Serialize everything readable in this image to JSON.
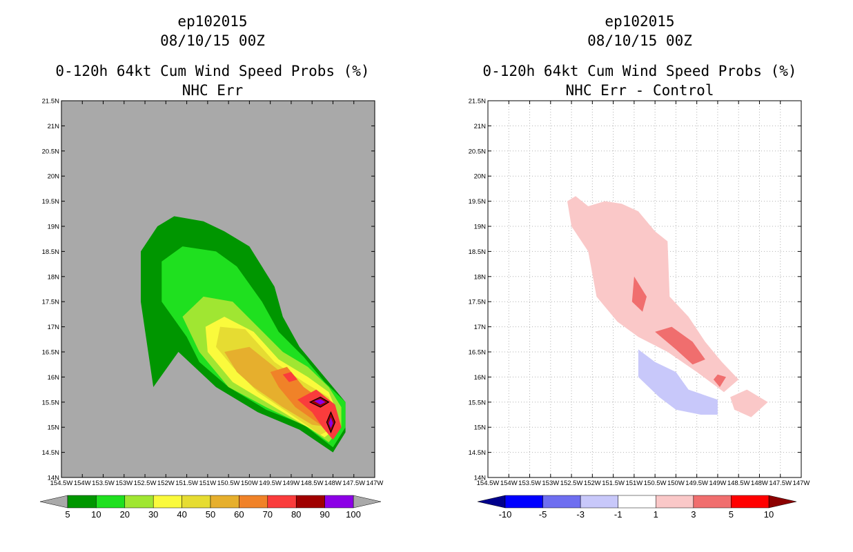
{
  "chart_data": [
    {
      "type": "filled-contour-map",
      "title_lines": [
        "ep102015",
        "08/10/15 00Z",
        "0-120h 64kt Cum Wind Speed Probs (%)",
        "NHC Err"
      ],
      "xlabel": "",
      "ylabel": "",
      "xlim": [
        -154.5,
        -147
      ],
      "ylim": [
        14,
        21.5
      ],
      "x_tick_labels": [
        "154.5W",
        "154W",
        "153.5W",
        "153W",
        "152.5W",
        "152W",
        "151.5W",
        "151W",
        "150.5W",
        "150W",
        "149.5W",
        "149W",
        "148.5W",
        "148W",
        "147.5W",
        "147W"
      ],
      "y_tick_labels": [
        "14N",
        "14.5N",
        "15N",
        "15.5N",
        "16N",
        "16.5N",
        "17N",
        "17.5N",
        "18N",
        "18.5N",
        "19N",
        "19.5N",
        "20N",
        "20.5N",
        "21N",
        "21.5N"
      ],
      "background": "#a9a9a9",
      "colorbar": {
        "labels": [
          "5",
          "10",
          "20",
          "30",
          "40",
          "50",
          "60",
          "70",
          "80",
          "90",
          "100"
        ],
        "colors": [
          "#009600",
          "#1fe01f",
          "#a0e632",
          "#fafa3c",
          "#e6dc32",
          "#e6af2d",
          "#f08228",
          "#fa3c3c",
          "#a00000",
          "#8c00e6"
        ],
        "under_color": "#a9a9a9",
        "over_color": "#a9a9a9"
      },
      "series": [
        {
          "name": ">5",
          "color": "#009600",
          "polygon": [
            [
              -152.3,
              15.8
            ],
            [
              -152.6,
              17.5
            ],
            [
              -152.6,
              18.5
            ],
            [
              -152.2,
              19
            ],
            [
              -151.8,
              19.2
            ],
            [
              -151.1,
              19.1
            ],
            [
              -150.6,
              18.9
            ],
            [
              -150,
              18.6
            ],
            [
              -149.4,
              17.8
            ],
            [
              -149.2,
              17.2
            ],
            [
              -148.8,
              16.6
            ],
            [
              -148.3,
              16.1
            ],
            [
              -147.7,
              15.5
            ],
            [
              -147.7,
              14.9
            ],
            [
              -148,
              14.5
            ],
            [
              -148.8,
              14.95
            ],
            [
              -149.8,
              15.3
            ],
            [
              -150.8,
              15.8
            ],
            [
              -151.7,
              16.5
            ]
          ]
        },
        {
          "name": ">10",
          "color": "#1fe01f",
          "polygon": [
            [
              -151.5,
              16.8
            ],
            [
              -152.1,
              17.5
            ],
            [
              -152.1,
              18.3
            ],
            [
              -151.6,
              18.6
            ],
            [
              -150.8,
              18.5
            ],
            [
              -150.3,
              18.2
            ],
            [
              -149.7,
              17.5
            ],
            [
              -149.3,
              16.9
            ],
            [
              -148.7,
              16.4
            ],
            [
              -148.2,
              15.9
            ],
            [
              -147.7,
              15.5
            ],
            [
              -147.7,
              15
            ],
            [
              -148,
              14.6
            ],
            [
              -148.7,
              15.05
            ],
            [
              -149.6,
              15.35
            ],
            [
              -150.5,
              15.8
            ],
            [
              -151.2,
              16.3
            ]
          ]
        },
        {
          "name": ">20",
          "color": "#a0e632",
          "polygon": [
            [
              -151.2,
              16.5
            ],
            [
              -151.6,
              17.2
            ],
            [
              -151.1,
              17.6
            ],
            [
              -150.4,
              17.5
            ],
            [
              -149.8,
              17
            ],
            [
              -149.2,
              16.5
            ],
            [
              -148.6,
              16.2
            ],
            [
              -148.1,
              15.8
            ],
            [
              -147.8,
              15.4
            ],
            [
              -147.8,
              15
            ],
            [
              -148.1,
              14.7
            ],
            [
              -148.6,
              15
            ],
            [
              -149.6,
              15.4
            ],
            [
              -150.5,
              15.8
            ]
          ]
        },
        {
          "name": ">30",
          "color": "#fafa3c",
          "polygon": [
            [
              -151,
              16.5
            ],
            [
              -151.05,
              17
            ],
            [
              -150.6,
              17.2
            ],
            [
              -149.9,
              16.9
            ],
            [
              -149.3,
              16.35
            ],
            [
              -148.6,
              16
            ],
            [
              -148.1,
              15.7
            ],
            [
              -147.9,
              15.3
            ],
            [
              -147.9,
              15
            ],
            [
              -148.2,
              14.8
            ],
            [
              -148.8,
              15.1
            ],
            [
              -149.7,
              15.55
            ],
            [
              -150.4,
              15.9
            ]
          ]
        },
        {
          "name": ">40",
          "color": "#e6dc32",
          "polygon": [
            [
              -150.8,
              16.6
            ],
            [
              -150.7,
              17
            ],
            [
              -150.1,
              16.95
            ],
            [
              -149.4,
              16.3
            ],
            [
              -148.7,
              15.9
            ],
            [
              -148.1,
              15.6
            ],
            [
              -147.9,
              15.25
            ],
            [
              -147.95,
              15.0
            ],
            [
              -148.3,
              14.85
            ],
            [
              -149,
              15.25
            ],
            [
              -149.8,
              15.7
            ],
            [
              -150.4,
              16.2
            ]
          ]
        },
        {
          "name": ">50",
          "color": "#e6af2d",
          "polygon": [
            [
              -150.6,
              16.5
            ],
            [
              -150,
              16.6
            ],
            [
              -149.4,
              16.2
            ],
            [
              -148.8,
              15.8
            ],
            [
              -148.3,
              15.5
            ],
            [
              -148.0,
              15.2
            ],
            [
              -148.05,
              15.0
            ],
            [
              -148.5,
              15.05
            ],
            [
              -149.2,
              15.4
            ],
            [
              -149.9,
              15.8
            ],
            [
              -150.3,
              16.1
            ]
          ]
        },
        {
          "name": ">60",
          "color": "#f08228",
          "polygon": [
            [
              -149.5,
              16.1
            ],
            [
              -149.1,
              16.2
            ],
            [
              -148.7,
              15.8
            ],
            [
              -148.2,
              15.5
            ],
            [
              -148.05,
              15.15
            ],
            [
              -148.3,
              15.05
            ],
            [
              -148.9,
              15.4
            ],
            [
              -149.3,
              15.8
            ]
          ]
        },
        {
          "name": ">70",
          "color": "#fa3c3c",
          "polygon": [
            [
              -148.85,
              15.55
            ],
            [
              -148.4,
              15.75
            ],
            [
              -147.95,
              15.45
            ],
            [
              -147.8,
              15.0
            ],
            [
              -148.0,
              14.75
            ],
            [
              -148.25,
              15.0
            ],
            [
              -148.5,
              15.3
            ]
          ]
        },
        {
          "name": ">70b",
          "color": "#fa3c3c",
          "polygon": [
            [
              -149.2,
              16.05
            ],
            [
              -149.0,
              16.1
            ],
            [
              -148.85,
              15.95
            ],
            [
              -149.05,
              15.9
            ]
          ]
        },
        {
          "name": ">80",
          "color": "#a00000",
          "polygon": [
            [
              -148.55,
              15.5
            ],
            [
              -148.3,
              15.6
            ],
            [
              -148.1,
              15.5
            ],
            [
              -148.3,
              15.4
            ]
          ]
        },
        {
          "name": ">80b",
          "color": "#a00000",
          "polygon": [
            [
              -148.05,
              15.3
            ],
            [
              -147.95,
              15.1
            ],
            [
              -148.05,
              14.9
            ],
            [
              -148.15,
              15.1
            ]
          ]
        },
        {
          "name": ">90",
          "color": "#8c00e6",
          "polygon": [
            [
              -148.45,
              15.52
            ],
            [
              -148.3,
              15.56
            ],
            [
              -148.18,
              15.5
            ],
            [
              -148.3,
              15.45
            ]
          ]
        },
        {
          "name": ">90b",
          "color": "#8c00e6",
          "polygon": [
            [
              -148.05,
              15.2
            ],
            [
              -148.0,
              15.08
            ],
            [
              -148.05,
              14.98
            ],
            [
              -148.1,
              15.08
            ]
          ]
        }
      ]
    },
    {
      "type": "filled-contour-map",
      "title_lines": [
        "ep102015",
        "08/10/15 00Z",
        "0-120h 64kt Cum Wind Speed Probs (%)",
        "NHC Err - Control"
      ],
      "xlabel": "",
      "ylabel": "",
      "xlim": [
        -154.5,
        -147
      ],
      "ylim": [
        14,
        21.5
      ],
      "grid": true,
      "x_tick_labels": [
        "154.5W",
        "154W",
        "153.5W",
        "153W",
        "152.5W",
        "152W",
        "151.5W",
        "151W",
        "150.5W",
        "150W",
        "149.5W",
        "149W",
        "148.5W",
        "148W",
        "147.5W",
        "147W"
      ],
      "y_tick_labels": [
        "14N",
        "14.5N",
        "15N",
        "15.5N",
        "16N",
        "16.5N",
        "17N",
        "17.5N",
        "18N",
        "18.5N",
        "19N",
        "19.5N",
        "20N",
        "20.5N",
        "21N",
        "21.5N"
      ],
      "background": "#ffffff",
      "colorbar": {
        "labels": [
          "-10",
          "-5",
          "-3",
          "-1",
          "1",
          "3",
          "5",
          "10"
        ],
        "colors": [
          "#0000ff",
          "#6e6ef0",
          "#c8c8fa",
          "#ffffff",
          "#fac8c8",
          "#f06e6e",
          "#ff0000"
        ],
        "under_color": "#00008c",
        "over_color": "#8c0000"
      },
      "series": [
        {
          "name": "1 to 3",
          "color": "#fac8c8",
          "polygon": [
            [
              -152.6,
              19.5
            ],
            [
              -152.4,
              19.6
            ],
            [
              -152.1,
              19.4
            ],
            [
              -151.7,
              19.5
            ],
            [
              -151.3,
              19.45
            ],
            [
              -150.9,
              19.3
            ],
            [
              -150.5,
              18.9
            ],
            [
              -150.2,
              18.7
            ],
            [
              -150.15,
              17.6
            ],
            [
              -149.7,
              17.2
            ],
            [
              -149.3,
              16.7
            ],
            [
              -148.9,
              16.3
            ],
            [
              -148.5,
              15.95
            ],
            [
              -148.85,
              15.7
            ],
            [
              -149.5,
              16.1
            ],
            [
              -150.2,
              16.5
            ],
            [
              -150.9,
              16.8
            ],
            [
              -151.4,
              17.1
            ],
            [
              -151.9,
              17.6
            ],
            [
              -152.1,
              18.5
            ],
            [
              -152.5,
              19
            ]
          ]
        },
        {
          "name": "1 to 3 (b)",
          "color": "#fac8c8",
          "polygon": [
            [
              -148.7,
              15.6
            ],
            [
              -148.3,
              15.75
            ],
            [
              -147.8,
              15.5
            ],
            [
              -148.2,
              15.2
            ],
            [
              -148.6,
              15.35
            ]
          ]
        },
        {
          "name": "3 to 5",
          "color": "#f06e6e",
          "polygon": [
            [
              -151.0,
              18.0
            ],
            [
              -150.7,
              17.6
            ],
            [
              -150.8,
              17.3
            ],
            [
              -151.05,
              17.5
            ]
          ]
        },
        {
          "name": "3 to 5 (b)",
          "color": "#f06e6e",
          "polygon": [
            [
              -150.5,
              16.9
            ],
            [
              -150.1,
              17.0
            ],
            [
              -149.6,
              16.7
            ],
            [
              -149.3,
              16.35
            ],
            [
              -149.6,
              16.25
            ],
            [
              -150.0,
              16.55
            ]
          ]
        },
        {
          "name": "3 to 5 (c)",
          "color": "#f06e6e",
          "polygon": [
            [
              -149.0,
              16.05
            ],
            [
              -148.8,
              16.0
            ],
            [
              -148.95,
              15.8
            ],
            [
              -149.1,
              15.95
            ]
          ]
        },
        {
          "name": "-3 to -1",
          "color": "#c8c8fa",
          "polygon": [
            [
              -150.9,
              16.55
            ],
            [
              -150.5,
              16.3
            ],
            [
              -150.0,
              16.1
            ],
            [
              -149.7,
              15.75
            ],
            [
              -149.0,
              15.55
            ],
            [
              -149.0,
              15.25
            ],
            [
              -149.4,
              15.25
            ],
            [
              -150.0,
              15.35
            ],
            [
              -150.4,
              15.6
            ],
            [
              -150.9,
              16.0
            ]
          ]
        }
      ]
    }
  ]
}
